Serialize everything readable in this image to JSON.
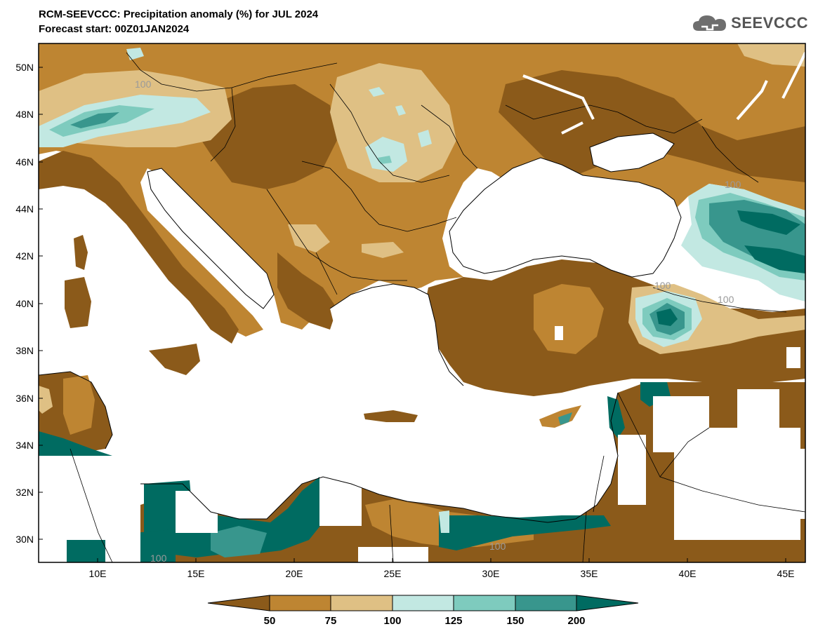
{
  "header": {
    "title_line1": "RCM-SEEVCCC: Precipitation anomaly (%) for JUL 2024",
    "title_line2": "Forecast start: 00Z01JAN2024"
  },
  "logo": {
    "text": "SEEVCCC",
    "icon": "cloud-icon"
  },
  "map": {
    "lon_range": [
      7,
      46
    ],
    "lat_range": [
      29,
      51
    ],
    "lat_ticks": [
      "50N",
      "48N",
      "46N",
      "44N",
      "42N",
      "40N",
      "38N",
      "36N",
      "34N",
      "32N",
      "30N"
    ],
    "lon_ticks": [
      "10E",
      "15E",
      "20E",
      "25E",
      "30E",
      "35E",
      "40E",
      "45E"
    ],
    "contour_labels": [
      "100",
      "100",
      "100",
      "100",
      "100",
      "100"
    ]
  },
  "colorbar": {
    "ticks": [
      "50",
      "75",
      "100",
      "125",
      "150",
      "200"
    ],
    "colors": [
      "#8b5a1a",
      "#be8532",
      "#dfc084",
      "#c2e8e2",
      "#7ecbbe",
      "#38968d",
      "#006b61"
    ]
  },
  "colors": {
    "dry_strong": "#8b5a1a",
    "dry": "#be8532",
    "dry_light": "#dfc084",
    "wet_light": "#c2e8e2",
    "wet": "#7ecbbe",
    "wet_strong": "#38968d",
    "wet_extreme": "#006b61"
  }
}
